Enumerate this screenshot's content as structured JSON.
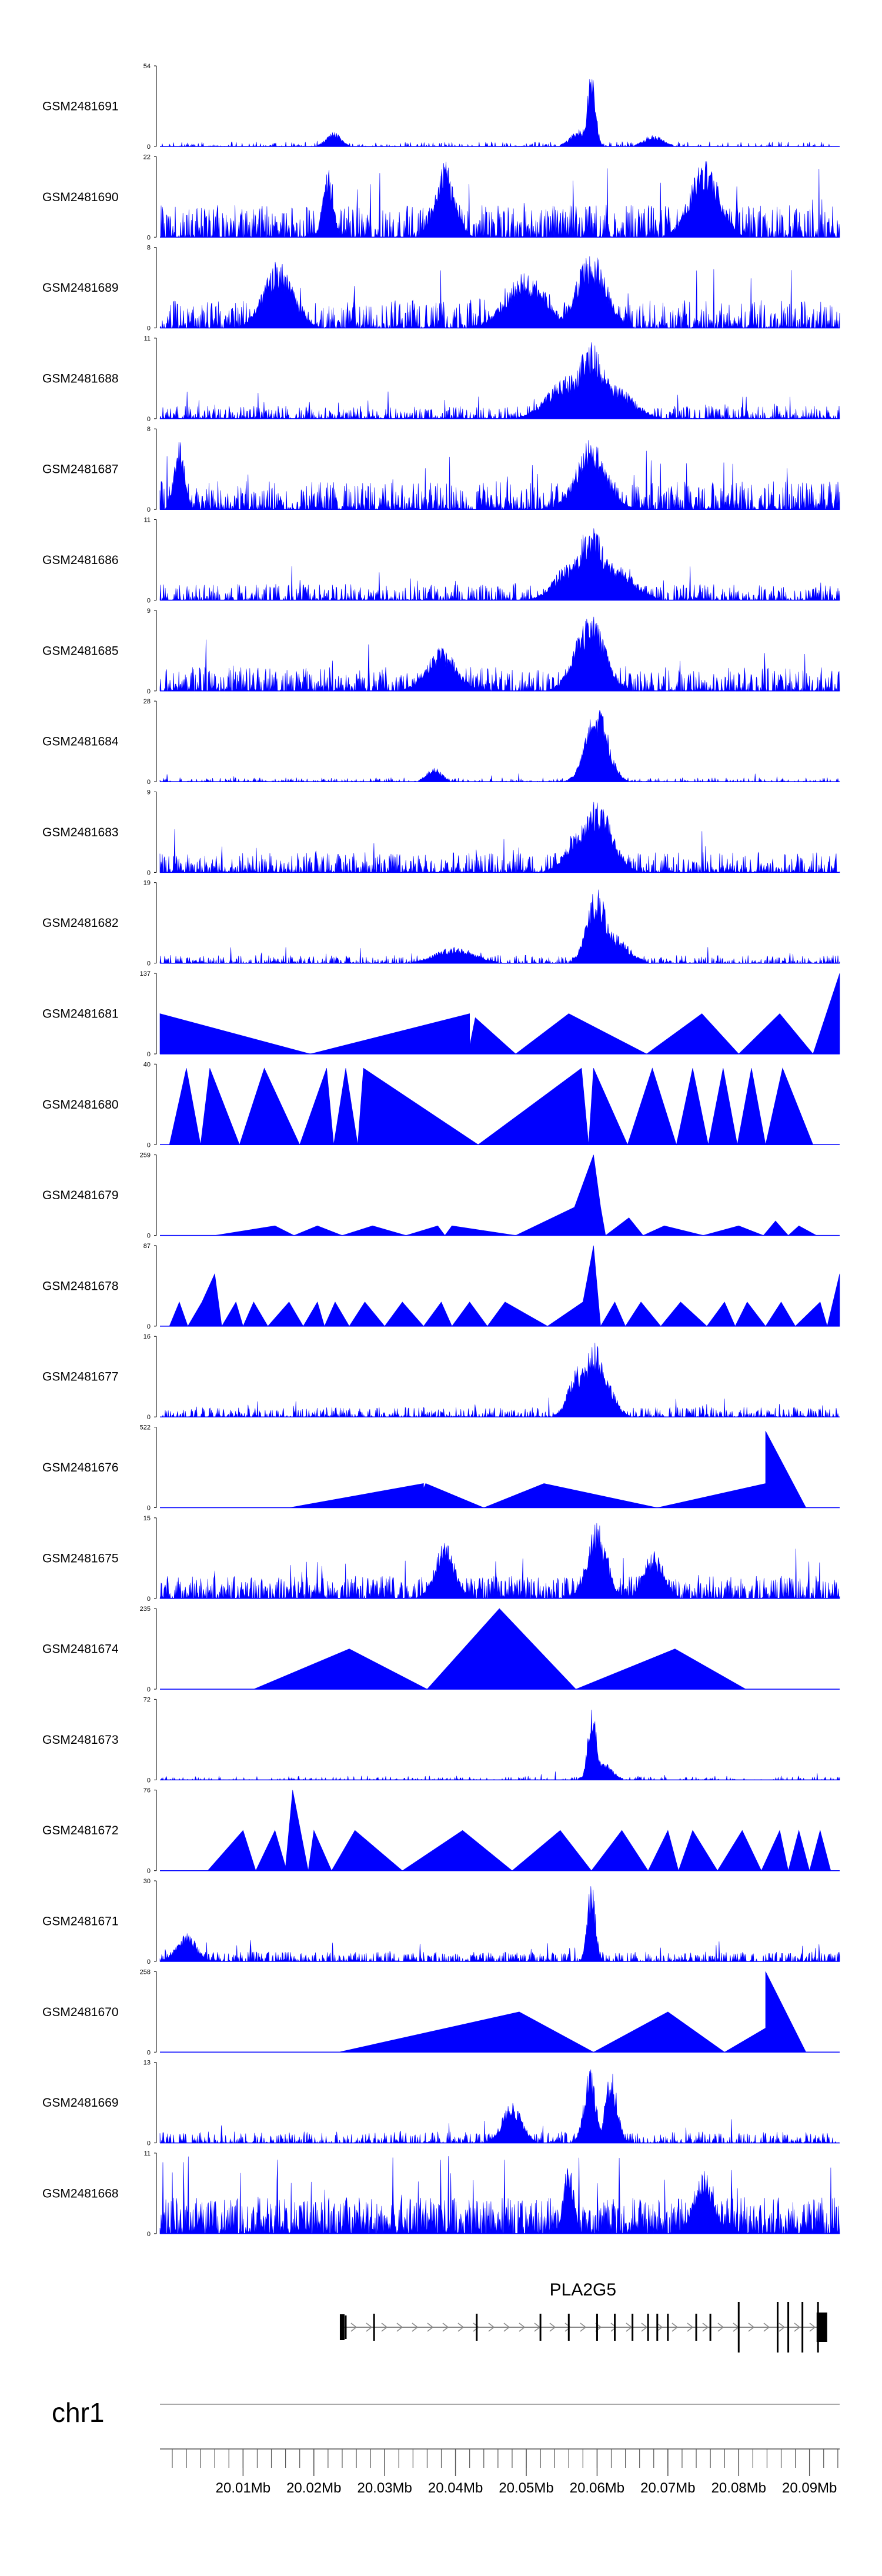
{
  "chart_data": {
    "type": "area",
    "title": "",
    "colors": {
      "signal": "#0000ff",
      "axis": "#000000",
      "gene": "#000000",
      "intron": "#888888",
      "tick": "#555555"
    },
    "x_domain_mb": [
      19.99826,
      20.09426
    ],
    "tracks": [
      {
        "name": "GSM2481691",
        "ymax": "54",
        "ymin": "0",
        "style": "noise",
        "density": 0.35,
        "base": 0.06,
        "peaks": [
          [
            20.0592,
            1.0,
            0.0008
          ],
          [
            20.0578,
            0.22,
            0.002
          ],
          [
            20.0228,
            0.18,
            0.0015
          ],
          [
            20.068,
            0.14,
            0.002
          ]
        ]
      },
      {
        "name": "GSM2481690",
        "ymax": "22",
        "ymin": "0",
        "style": "spiky",
        "density": 0.62,
        "base": 0.4,
        "peaks": [
          [
            20.0385,
            0.95,
            0.002
          ],
          [
            20.0752,
            0.95,
            0.003
          ],
          [
            20.022,
            0.9,
            0.001
          ]
        ]
      },
      {
        "name": "GSM2481689",
        "ymax": "8",
        "ymin": "0",
        "style": "noise",
        "density": 0.75,
        "base": 0.35,
        "peaks": [
          [
            20.0592,
            0.95,
            0.003
          ],
          [
            20.015,
            0.85,
            0.003
          ],
          [
            20.05,
            0.7,
            0.004
          ]
        ]
      },
      {
        "name": "GSM2481688",
        "ymax": "11",
        "ymin": "0",
        "style": "noise",
        "density": 0.7,
        "base": 0.16,
        "peaks": [
          [
            20.0592,
            0.95,
            0.003
          ],
          [
            20.056,
            0.55,
            0.004
          ],
          [
            20.062,
            0.45,
            0.004
          ]
        ]
      },
      {
        "name": "GSM2481687",
        "ymax": "8",
        "ymin": "0",
        "style": "noise",
        "density": 0.8,
        "base": 0.35,
        "peaks": [
          [
            20.0592,
            0.9,
            0.003
          ],
          [
            20.001,
            0.9,
            0.001
          ]
        ]
      },
      {
        "name": "GSM2481686",
        "ymax": "11",
        "ymin": "0",
        "style": "noise",
        "density": 0.7,
        "base": 0.2,
        "peaks": [
          [
            20.0592,
            0.95,
            0.003
          ],
          [
            20.062,
            0.5,
            0.004
          ],
          [
            20.056,
            0.45,
            0.003
          ]
        ]
      },
      {
        "name": "GSM2481685",
        "ymax": "9",
        "ymin": "0",
        "style": "noise",
        "density": 0.75,
        "base": 0.3,
        "peaks": [
          [
            20.059,
            0.95,
            0.003
          ],
          [
            20.038,
            0.55,
            0.003
          ],
          [
            20.06,
            0.8,
            0.002
          ]
        ]
      },
      {
        "name": "GSM2481684",
        "ymax": "28",
        "ymin": "0",
        "style": "noise",
        "density": 0.45,
        "base": 0.05,
        "peaks": [
          [
            20.06,
            0.95,
            0.0022
          ],
          [
            20.037,
            0.18,
            0.0015
          ]
        ]
      },
      {
        "name": "GSM2481683",
        "ymax": "9",
        "ymin": "0",
        "style": "noise",
        "density": 0.75,
        "base": 0.25,
        "peaks": [
          [
            20.06,
            0.9,
            0.003
          ],
          [
            20.058,
            0.6,
            0.003
          ]
        ]
      },
      {
        "name": "GSM2481682",
        "ymax": "19",
        "ymin": "0",
        "style": "noise",
        "density": 0.6,
        "base": 0.1,
        "peaks": [
          [
            20.06,
            0.95,
            0.002
          ],
          [
            20.062,
            0.4,
            0.003
          ],
          [
            20.04,
            0.2,
            0.004
          ]
        ]
      },
      {
        "name": "GSM2481681",
        "ymax": "137",
        "ymin": "0",
        "style": "polygon",
        "points": [
          [
            19.99826,
            0
          ],
          [
            19.99826,
            0.5
          ],
          [
            20.0195,
            0
          ],
          [
            20.042,
            0.5
          ],
          [
            20.042,
            0.1
          ],
          [
            20.0428,
            0.45
          ],
          [
            20.0485,
            0
          ],
          [
            20.056,
            0.5
          ],
          [
            20.067,
            0
          ],
          [
            20.0748,
            0.5
          ],
          [
            20.08,
            0
          ],
          [
            20.0858,
            0.5
          ],
          [
            20.0905,
            0
          ],
          [
            20.09426,
            1.0
          ],
          [
            20.09426,
            0
          ]
        ]
      },
      {
        "name": "GSM2481680",
        "ymax": "40",
        "ymin": "0",
        "style": "polygon",
        "points": [
          [
            19.9996,
            0
          ],
          [
            20.002,
            0.95
          ],
          [
            20.004,
            0
          ],
          [
            20.0053,
            0.95
          ],
          [
            20.0095,
            0
          ],
          [
            20.013,
            0.95
          ],
          [
            20.018,
            0
          ],
          [
            20.0218,
            0.95
          ],
          [
            20.0228,
            0
          ],
          [
            20.0245,
            0.95
          ],
          [
            20.0262,
            0
          ],
          [
            20.027,
            0.95
          ],
          [
            20.0432,
            0
          ],
          [
            20.0578,
            0.95
          ],
          [
            20.0588,
            0
          ],
          [
            20.0595,
            0.95
          ],
          [
            20.0643,
            0
          ],
          [
            20.0678,
            0.95
          ],
          [
            20.0712,
            0
          ],
          [
            20.0735,
            0.95
          ],
          [
            20.0757,
            0
          ],
          [
            20.0778,
            0.95
          ],
          [
            20.0798,
            0
          ],
          [
            20.0818,
            0.95
          ],
          [
            20.0838,
            0
          ],
          [
            20.0862,
            0.95
          ],
          [
            20.0905,
            0
          ]
        ]
      },
      {
        "name": "GSM2481679",
        "ymax": "259",
        "ymin": "0",
        "style": "polygon",
        "points": [
          [
            20.006,
            0
          ],
          [
            20.0145,
            0.12
          ],
          [
            20.0172,
            0
          ],
          [
            20.0205,
            0.12
          ],
          [
            20.024,
            0
          ],
          [
            20.0283,
            0.12
          ],
          [
            20.033,
            0
          ],
          [
            20.0375,
            0.12
          ],
          [
            20.0385,
            0
          ],
          [
            20.0395,
            0.12
          ],
          [
            20.0485,
            0
          ],
          [
            20.0568,
            0.35
          ],
          [
            20.0595,
            1.0
          ],
          [
            20.0605,
            0.35
          ],
          [
            20.0612,
            0
          ],
          [
            20.0645,
            0.22
          ],
          [
            20.0665,
            0
          ],
          [
            20.0695,
            0.12
          ],
          [
            20.075,
            0
          ],
          [
            20.08,
            0.12
          ],
          [
            20.0835,
            0
          ],
          [
            20.0852,
            0.18
          ],
          [
            20.087,
            0
          ],
          [
            20.0885,
            0.12
          ],
          [
            20.091,
            0
          ]
        ]
      },
      {
        "name": "GSM2481678",
        "ymax": "87",
        "ymin": "0",
        "style": "polygon",
        "points": [
          [
            19.9996,
            0
          ],
          [
            20.001,
            0.3
          ],
          [
            20.0022,
            0
          ],
          [
            20.0042,
            0.3
          ],
          [
            20.006,
            0.65
          ],
          [
            20.007,
            0
          ],
          [
            20.009,
            0.3
          ],
          [
            20.01,
            0
          ],
          [
            20.0115,
            0.3
          ],
          [
            20.0135,
            0
          ],
          [
            20.0165,
            0.3
          ],
          [
            20.0185,
            0
          ],
          [
            20.0205,
            0.3
          ],
          [
            20.0215,
            0
          ],
          [
            20.023,
            0.3
          ],
          [
            20.025,
            0
          ],
          [
            20.0272,
            0.3
          ],
          [
            20.03,
            0
          ],
          [
            20.0325,
            0.3
          ],
          [
            20.0355,
            0
          ],
          [
            20.038,
            0.3
          ],
          [
            20.0395,
            0
          ],
          [
            20.042,
            0.3
          ],
          [
            20.0445,
            0
          ],
          [
            20.047,
            0.3
          ],
          [
            20.053,
            0
          ],
          [
            20.058,
            0.3
          ],
          [
            20.0595,
            1.0
          ],
          [
            20.0605,
            0
          ],
          [
            20.0625,
            0.3
          ],
          [
            20.064,
            0
          ],
          [
            20.0662,
            0.3
          ],
          [
            20.069,
            0
          ],
          [
            20.0718,
            0.3
          ],
          [
            20.0755,
            0
          ],
          [
            20.078,
            0.3
          ],
          [
            20.0795,
            0
          ],
          [
            20.0812,
            0.3
          ],
          [
            20.0838,
            0
          ],
          [
            20.086,
            0.3
          ],
          [
            20.088,
            0
          ],
          [
            20.0915,
            0.3
          ],
          [
            20.0925,
            0
          ],
          [
            20.09426,
            0.65
          ],
          [
            20.09426,
            0
          ]
        ]
      },
      {
        "name": "GSM2481677",
        "ymax": "16",
        "ymin": "0",
        "style": "noise",
        "density": 0.65,
        "base": 0.12,
        "peaks": [
          [
            20.0595,
            0.95,
            0.002
          ],
          [
            20.0575,
            0.65,
            0.002
          ],
          [
            20.061,
            0.5,
            0.002
          ]
        ]
      },
      {
        "name": "GSM2481676",
        "ymax": "522",
        "ymin": "0",
        "style": "polygon",
        "points": [
          [
            20.0165,
            0
          ],
          [
            20.0355,
            0.3
          ],
          [
            20.0355,
            0.24
          ],
          [
            20.0358,
            0.3
          ],
          [
            20.044,
            0
          ],
          [
            20.0525,
            0.3
          ],
          [
            20.0685,
            0
          ],
          [
            20.0838,
            0.3
          ],
          [
            20.0838,
            0.95
          ],
          [
            20.0895,
            0
          ]
        ]
      },
      {
        "name": "GSM2481675",
        "ymax": "15",
        "ymin": "0",
        "style": "spiky",
        "density": 0.72,
        "base": 0.28,
        "peaks": [
          [
            20.06,
            0.95,
            0.002
          ],
          [
            20.0385,
            0.7,
            0.002
          ],
          [
            20.068,
            0.6,
            0.002
          ]
        ]
      },
      {
        "name": "GSM2481674",
        "ymax": "235",
        "ymin": "0",
        "style": "polygon",
        "points": [
          [
            20.0115,
            0
          ],
          [
            20.025,
            0.5
          ],
          [
            20.036,
            0
          ],
          [
            20.0462,
            1.0
          ],
          [
            20.057,
            0
          ],
          [
            20.071,
            0.5
          ],
          [
            20.081,
            0
          ]
        ]
      },
      {
        "name": "GSM2481673",
        "ymax": "72",
        "ymin": "0",
        "style": "noise",
        "density": 0.3,
        "base": 0.05,
        "peaks": [
          [
            20.0593,
            1.0,
            0.0008
          ],
          [
            20.0605,
            0.25,
            0.002
          ]
        ]
      },
      {
        "name": "GSM2481672",
        "ymax": "76",
        "ymin": "0",
        "style": "polygon",
        "points": [
          [
            20.005,
            0
          ],
          [
            20.01,
            0.5
          ],
          [
            20.0118,
            0
          ],
          [
            20.0145,
            0.5
          ],
          [
            20.016,
            0.05
          ],
          [
            20.017,
            1.0
          ],
          [
            20.0192,
            0
          ],
          [
            20.02,
            0.5
          ],
          [
            20.0225,
            0
          ],
          [
            20.0258,
            0.5
          ],
          [
            20.0325,
            0
          ],
          [
            20.041,
            0.5
          ],
          [
            20.048,
            0
          ],
          [
            20.0548,
            0.5
          ],
          [
            20.0592,
            0
          ],
          [
            20.0635,
            0.5
          ],
          [
            20.0672,
            0
          ],
          [
            20.07,
            0.5
          ],
          [
            20.0715,
            0
          ],
          [
            20.0735,
            0.5
          ],
          [
            20.077,
            0
          ],
          [
            20.0805,
            0.5
          ],
          [
            20.0832,
            0
          ],
          [
            20.0858,
            0.5
          ],
          [
            20.087,
            0
          ],
          [
            20.0885,
            0.5
          ],
          [
            20.09,
            0
          ],
          [
            20.0915,
            0.5
          ],
          [
            20.093,
            0
          ]
        ]
      },
      {
        "name": "GSM2481671",
        "ymax": "30",
        "ymin": "0",
        "style": "spiky",
        "density": 0.55,
        "base": 0.12,
        "peaks": [
          [
            20.0592,
            1.0,
            0.0008
          ],
          [
            20.002,
            0.35,
            0.002
          ]
        ]
      },
      {
        "name": "GSM2481670",
        "ymax": "258",
        "ymin": "0",
        "style": "polygon",
        "points": [
          [
            20.0235,
            0
          ],
          [
            20.049,
            0.5
          ],
          [
            20.0595,
            0
          ],
          [
            20.07,
            0.5
          ],
          [
            20.078,
            0
          ],
          [
            20.0838,
            0.3
          ],
          [
            20.0838,
            1.0
          ],
          [
            20.0895,
            0
          ]
        ]
      },
      {
        "name": "GSM2481669",
        "ymax": "13",
        "ymin": "0",
        "style": "noise",
        "density": 0.65,
        "base": 0.14,
        "peaks": [
          [
            20.059,
            0.95,
            0.0012
          ],
          [
            20.062,
            0.9,
            0.0012
          ],
          [
            20.048,
            0.5,
            0.002
          ]
        ]
      },
      {
        "name": "GSM2481668",
        "ymax": "11",
        "ymin": "0",
        "style": "spiky",
        "density": 0.78,
        "base": 0.45,
        "peaks": [
          [
            20.056,
            0.95,
            0.001
          ],
          [
            20.075,
            0.8,
            0.002
          ]
        ]
      }
    ],
    "gene": {
      "name": "PLA2G5",
      "start_mb": 20.024,
      "end_mb": 20.092,
      "exons_mb": [
        20.0245,
        20.0285,
        20.043,
        20.052,
        20.056,
        20.06,
        20.0625,
        20.065,
        20.0672,
        20.0685,
        20.07,
        20.074,
        20.076,
        20.08,
        20.0855,
        20.087,
        20.089,
        20.0912
      ]
    },
    "chromosome": "chr1",
    "xticks": [
      {
        "mb": 20.01,
        "label": "20.01Mb"
      },
      {
        "mb": 20.02,
        "label": "20.02Mb"
      },
      {
        "mb": 20.03,
        "label": "20.03Mb"
      },
      {
        "mb": 20.04,
        "label": "20.04Mb"
      },
      {
        "mb": 20.05,
        "label": "20.05Mb"
      },
      {
        "mb": 20.06,
        "label": "20.06Mb"
      },
      {
        "mb": 20.07,
        "label": "20.07Mb"
      },
      {
        "mb": 20.08,
        "label": "20.08Mb"
      },
      {
        "mb": 20.09,
        "label": "20.09Mb"
      }
    ]
  }
}
